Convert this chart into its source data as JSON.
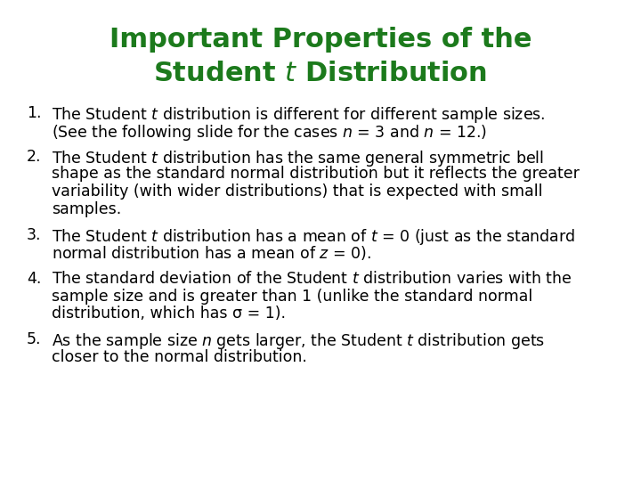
{
  "background_color": "#ffffff",
  "title_color": "#1c7a1c",
  "body_color": "#000000",
  "title_fontsize": 22,
  "body_fontsize": 12.5,
  "fig_width": 7.2,
  "fig_height": 5.4,
  "dpi": 100,
  "title_lines": [
    "Important Properties of the",
    "Student $t$ Distribution"
  ],
  "items": [
    {
      "number": "1.",
      "lines": [
        "The Student $t$ distribution is different for different sample sizes.",
        "(See the following slide for the cases $n$ = 3 and $n$ = 12.)"
      ]
    },
    {
      "number": "2.",
      "lines": [
        "The Student $t$ distribution has the same general symmetric bell",
        "shape as the standard normal distribution but it reflects the greater",
        "variability (with wider distributions) that is expected with small",
        "samples."
      ]
    },
    {
      "number": "3.",
      "lines": [
        "The Student $t$ distribution has a mean of $t$ = 0 (just as the standard",
        "normal distribution has a mean of $z$ = 0)."
      ]
    },
    {
      "number": "4.",
      "lines": [
        "The standard deviation of the Student $t$ distribution varies with the",
        "sample size and is greater than 1 (unlike the standard normal",
        "distribution, which has σ = 1)."
      ]
    },
    {
      "number": "5.",
      "lines": [
        "As the sample size $n$ gets larger, the Student $t$ distribution gets",
        "closer to the normal distribution."
      ]
    }
  ]
}
